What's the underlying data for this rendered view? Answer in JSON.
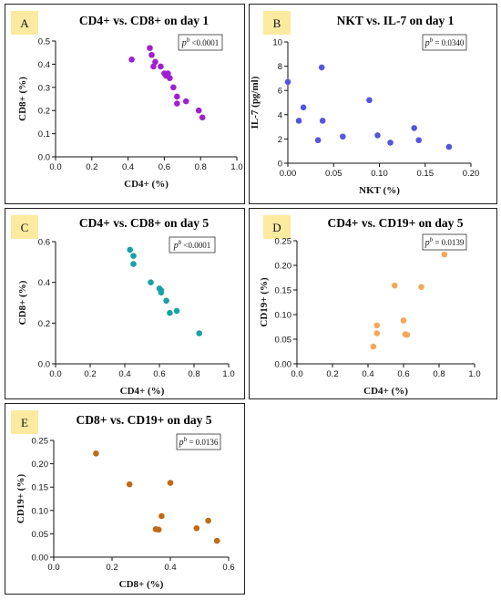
{
  "chart_data": [
    {
      "id": "A",
      "type": "scatter",
      "title": "CD4+ vs. CD8+ on day 1",
      "xlabel": "CD4+ (%)",
      "ylabel": "CD8+ (%)",
      "p_symbol": "p",
      "p_superscript": "b",
      "p_text": " <0.0001",
      "color": "#a020d0",
      "xlim": [
        0,
        1.0
      ],
      "ylim": [
        0,
        0.5
      ],
      "xticks": [
        "0.0",
        "0.2",
        "0.4",
        "0.6",
        "0.8",
        "1.0"
      ],
      "yticks": [
        "0.0",
        "0.1",
        "0.2",
        "0.3",
        "0.4",
        "0.5"
      ],
      "points": [
        [
          0.42,
          0.42
        ],
        [
          0.52,
          0.47
        ],
        [
          0.53,
          0.44
        ],
        [
          0.55,
          0.41
        ],
        [
          0.54,
          0.39
        ],
        [
          0.58,
          0.39
        ],
        [
          0.6,
          0.36
        ],
        [
          0.61,
          0.35
        ],
        [
          0.62,
          0.36
        ],
        [
          0.63,
          0.34
        ],
        [
          0.65,
          0.3
        ],
        [
          0.67,
          0.26
        ],
        [
          0.67,
          0.23
        ],
        [
          0.72,
          0.24
        ],
        [
          0.79,
          0.2
        ],
        [
          0.81,
          0.17
        ]
      ]
    },
    {
      "id": "B",
      "type": "scatter",
      "title": "NKT vs. IL-7 on day 1",
      "xlabel": "NKT (%)",
      "ylabel": "IL-7 (pg/ml)",
      "p_symbol": "p",
      "p_superscript": "b",
      "p_text": " = 0.0340",
      "color": "#5555e0",
      "xlim": [
        0,
        0.2
      ],
      "ylim": [
        0,
        10
      ],
      "xticks": [
        "0.00",
        "0.05",
        "0.10",
        "0.15",
        "0.20"
      ],
      "yticks": [
        "0",
        "2",
        "4",
        "6",
        "8",
        "10"
      ],
      "points": [
        [
          0.0,
          6.7
        ],
        [
          0.012,
          3.5
        ],
        [
          0.017,
          4.6
        ],
        [
          0.033,
          1.9
        ],
        [
          0.037,
          7.9
        ],
        [
          0.038,
          3.5
        ],
        [
          0.06,
          2.2
        ],
        [
          0.089,
          5.2
        ],
        [
          0.098,
          2.3
        ],
        [
          0.112,
          1.7
        ],
        [
          0.138,
          2.9
        ],
        [
          0.143,
          1.9
        ],
        [
          0.176,
          1.35
        ]
      ]
    },
    {
      "id": "C",
      "type": "scatter",
      "title": "CD4+ vs. CD8+ on day 5",
      "xlabel": "CD4+ (%)",
      "ylabel": "CD8+ (%)",
      "p_symbol": "p",
      "p_superscript": "b",
      "p_text": " <0.0001",
      "color": "#1aa0a8",
      "xlim": [
        0,
        1.0
      ],
      "ylim": [
        0,
        0.6
      ],
      "xticks": [
        "0.0",
        "0.2",
        "0.4",
        "0.6",
        "0.8",
        "1.0"
      ],
      "yticks": [
        "0.0",
        "0.2",
        "0.4",
        "0.6"
      ],
      "points": [
        [
          0.43,
          0.56
        ],
        [
          0.45,
          0.53
        ],
        [
          0.45,
          0.49
        ],
        [
          0.55,
          0.4
        ],
        [
          0.6,
          0.37
        ],
        [
          0.61,
          0.36
        ],
        [
          0.61,
          0.35
        ],
        [
          0.64,
          0.31
        ],
        [
          0.66,
          0.25
        ],
        [
          0.7,
          0.26
        ],
        [
          0.83,
          0.15
        ]
      ]
    },
    {
      "id": "D",
      "type": "scatter",
      "title": "CD4+ vs. CD19+ on day 5",
      "xlabel": "CD4+ (%)",
      "ylabel": "CD19+ (%)",
      "p_symbol": "p",
      "p_superscript": "b",
      "p_text": " = 0.0139",
      "color": "#f5a85a",
      "xlim": [
        0,
        1.0
      ],
      "ylim": [
        0,
        0.25
      ],
      "xticks": [
        "0.0",
        "0.2",
        "0.4",
        "0.6",
        "0.8",
        "1.0"
      ],
      "yticks": [
        "0.00",
        "0.05",
        "0.10",
        "0.15",
        "0.20",
        "0.25"
      ],
      "points": [
        [
          0.43,
          0.035
        ],
        [
          0.45,
          0.078
        ],
        [
          0.45,
          0.062
        ],
        [
          0.55,
          0.159
        ],
        [
          0.6,
          0.088
        ],
        [
          0.61,
          0.06
        ],
        [
          0.62,
          0.059
        ],
        [
          0.7,
          0.156
        ],
        [
          0.83,
          0.222
        ]
      ]
    },
    {
      "id": "E",
      "type": "scatter",
      "title": "CD8+ vs. CD19+ on day 5",
      "xlabel": "CD8+ (%)",
      "ylabel": "CD19+ (%)",
      "p_symbol": "p",
      "p_superscript": "b",
      "p_text": " = 0.0136",
      "color": "#c06a14",
      "xlim": [
        0,
        0.6
      ],
      "ylim": [
        0,
        0.25
      ],
      "xticks": [
        "0.0",
        "0.2",
        "0.4",
        "0.6"
      ],
      "yticks": [
        "0.00",
        "0.05",
        "0.10",
        "0.15",
        "0.20",
        "0.25"
      ],
      "points": [
        [
          0.145,
          0.222
        ],
        [
          0.26,
          0.156
        ],
        [
          0.35,
          0.06
        ],
        [
          0.36,
          0.059
        ],
        [
          0.37,
          0.088
        ],
        [
          0.4,
          0.159
        ],
        [
          0.49,
          0.062
        ],
        [
          0.53,
          0.078
        ],
        [
          0.56,
          0.035
        ]
      ]
    }
  ]
}
